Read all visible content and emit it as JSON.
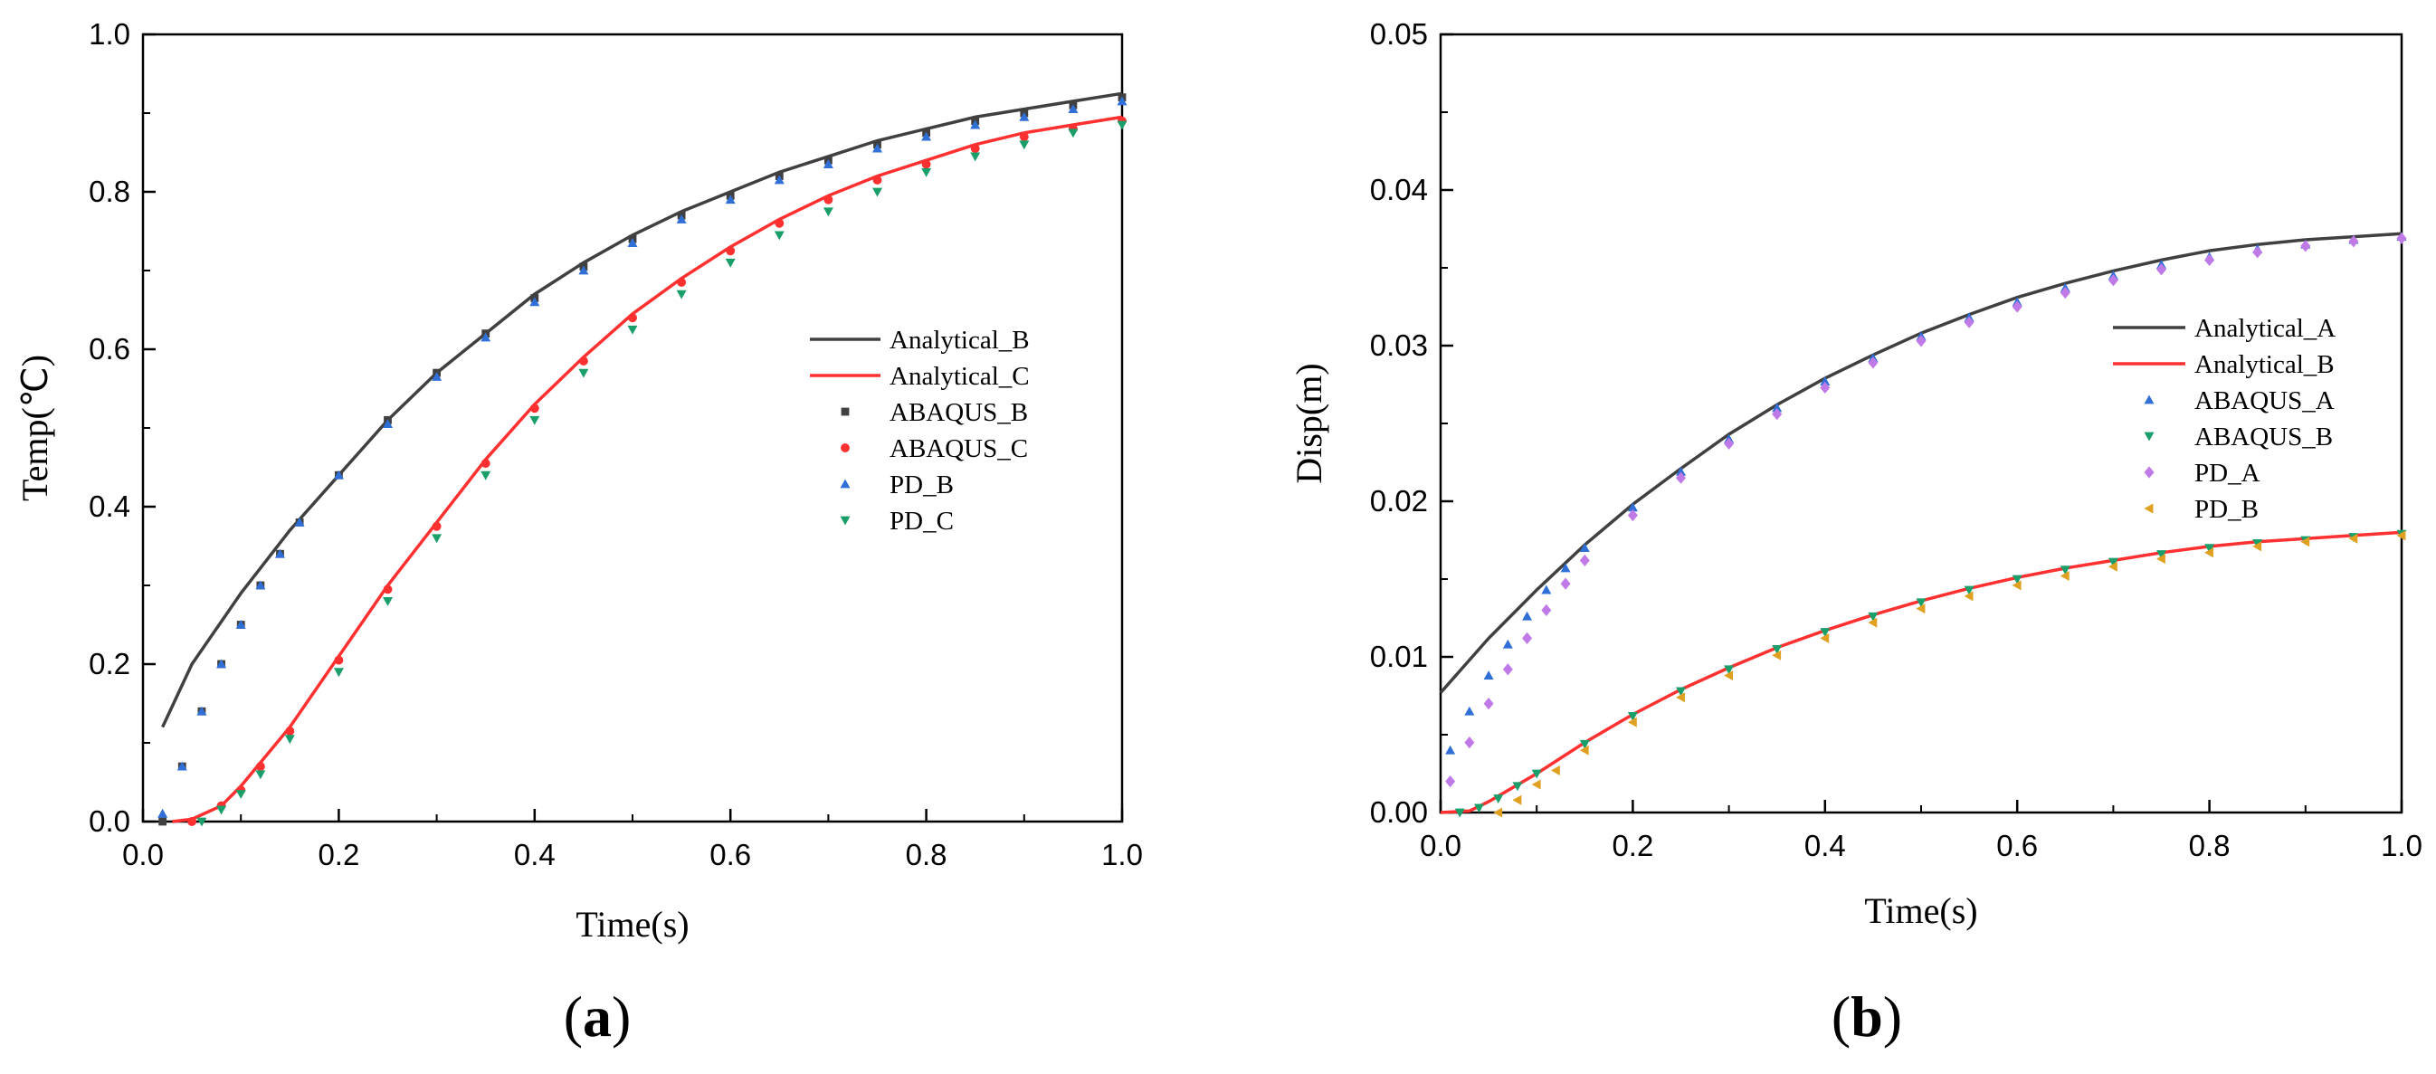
{
  "chart_data": [
    {
      "id": "a",
      "type": "line",
      "panel_label": {
        "open": "(",
        "letter": "a",
        "close": ")"
      },
      "xlabel": "Time(s)",
      "ylabel": "Temp(℃)",
      "xlim": [
        0.0,
        1.0
      ],
      "ylim": [
        0.0,
        1.0
      ],
      "xticks": [
        0.0,
        0.2,
        0.4,
        0.6,
        0.8,
        1.0
      ],
      "yticks": [
        0.0,
        0.2,
        0.4,
        0.6,
        0.8,
        1.0
      ],
      "xtick_labels": [
        "0.0",
        "0.2",
        "0.4",
        "0.6",
        "0.8",
        "1.0"
      ],
      "ytick_labels": [
        "0.0",
        "0.2",
        "0.4",
        "0.6",
        "0.8",
        "1.0"
      ],
      "legend_position": "center-right",
      "series": [
        {
          "name": "Analytical_B",
          "kind": "line",
          "color": "#404040",
          "x": [
            0.02,
            0.05,
            0.1,
            0.15,
            0.2,
            0.25,
            0.3,
            0.35,
            0.4,
            0.45,
            0.5,
            0.55,
            0.6,
            0.65,
            0.7,
            0.75,
            0.8,
            0.85,
            0.9,
            0.95,
            1.0
          ],
          "y": [
            0.12,
            0.2,
            0.29,
            0.37,
            0.44,
            0.51,
            0.57,
            0.62,
            0.67,
            0.71,
            0.745,
            0.775,
            0.8,
            0.825,
            0.845,
            0.865,
            0.88,
            0.895,
            0.905,
            0.915,
            0.925
          ]
        },
        {
          "name": "Analytical_C",
          "kind": "line",
          "color": "#ff3030",
          "x": [
            0.03,
            0.05,
            0.08,
            0.1,
            0.15,
            0.2,
            0.25,
            0.3,
            0.35,
            0.4,
            0.45,
            0.5,
            0.55,
            0.6,
            0.65,
            0.7,
            0.75,
            0.8,
            0.85,
            0.9,
            0.95,
            1.0
          ],
          "y": [
            0.0,
            0.003,
            0.02,
            0.045,
            0.12,
            0.21,
            0.3,
            0.38,
            0.46,
            0.53,
            0.59,
            0.645,
            0.69,
            0.73,
            0.765,
            0.795,
            0.82,
            0.84,
            0.86,
            0.875,
            0.885,
            0.895
          ]
        },
        {
          "name": "ABAQUS_B",
          "kind": "scatter",
          "marker": "square",
          "color": "#404040",
          "x": [
            0.02,
            0.04,
            0.06,
            0.08,
            0.1,
            0.12,
            0.14,
            0.16,
            0.2,
            0.25,
            0.3,
            0.35,
            0.4,
            0.45,
            0.5,
            0.55,
            0.6,
            0.65,
            0.7,
            0.75,
            0.8,
            0.85,
            0.9,
            0.95,
            1.0
          ],
          "y": [
            0.0,
            0.07,
            0.14,
            0.2,
            0.25,
            0.3,
            0.34,
            0.38,
            0.44,
            0.51,
            0.57,
            0.62,
            0.665,
            0.705,
            0.74,
            0.77,
            0.795,
            0.82,
            0.84,
            0.86,
            0.875,
            0.89,
            0.9,
            0.91,
            0.92
          ]
        },
        {
          "name": "ABAQUS_C",
          "kind": "scatter",
          "marker": "circle",
          "color": "#ff3030",
          "x": [
            0.05,
            0.08,
            0.1,
            0.12,
            0.15,
            0.2,
            0.25,
            0.3,
            0.35,
            0.4,
            0.45,
            0.5,
            0.55,
            0.6,
            0.65,
            0.7,
            0.75,
            0.8,
            0.85,
            0.9,
            0.95,
            1.0
          ],
          "y": [
            0.0,
            0.02,
            0.04,
            0.07,
            0.115,
            0.205,
            0.295,
            0.375,
            0.455,
            0.525,
            0.585,
            0.64,
            0.685,
            0.725,
            0.76,
            0.79,
            0.815,
            0.835,
            0.855,
            0.87,
            0.88,
            0.89
          ]
        },
        {
          "name": "PD_B",
          "kind": "scatter",
          "marker": "triangle-up",
          "color": "#2f6fd6",
          "x": [
            0.02,
            0.04,
            0.06,
            0.08,
            0.1,
            0.12,
            0.14,
            0.16,
            0.2,
            0.25,
            0.3,
            0.35,
            0.4,
            0.45,
            0.5,
            0.55,
            0.6,
            0.65,
            0.7,
            0.75,
            0.8,
            0.85,
            0.9,
            0.95,
            1.0
          ],
          "y": [
            0.01,
            0.07,
            0.14,
            0.2,
            0.25,
            0.3,
            0.34,
            0.38,
            0.44,
            0.505,
            0.565,
            0.615,
            0.66,
            0.7,
            0.735,
            0.765,
            0.79,
            0.815,
            0.835,
            0.855,
            0.87,
            0.885,
            0.895,
            0.905,
            0.915
          ]
        },
        {
          "name": "PD_C",
          "kind": "scatter",
          "marker": "triangle-down",
          "color": "#1a9e6a",
          "x": [
            0.06,
            0.08,
            0.1,
            0.12,
            0.15,
            0.2,
            0.25,
            0.3,
            0.35,
            0.4,
            0.45,
            0.5,
            0.55,
            0.6,
            0.65,
            0.7,
            0.75,
            0.8,
            0.85,
            0.9,
            0.95,
            1.0
          ],
          "y": [
            0.0,
            0.015,
            0.035,
            0.06,
            0.105,
            0.19,
            0.28,
            0.36,
            0.44,
            0.51,
            0.57,
            0.625,
            0.67,
            0.71,
            0.745,
            0.775,
            0.8,
            0.825,
            0.845,
            0.86,
            0.875,
            0.885
          ]
        }
      ]
    },
    {
      "id": "b",
      "type": "line",
      "panel_label": {
        "open": "(",
        "letter": "b",
        "close": ")"
      },
      "xlabel": "Time(s)",
      "ylabel": "Disp(m)",
      "xlim": [
        0.0,
        1.0
      ],
      "ylim": [
        0.0,
        0.05
      ],
      "xticks": [
        0.0,
        0.2,
        0.4,
        0.6,
        0.8,
        1.0
      ],
      "yticks": [
        0.0,
        0.01,
        0.02,
        0.03,
        0.04,
        0.05
      ],
      "xtick_labels": [
        "0.0",
        "0.2",
        "0.4",
        "0.6",
        "0.8",
        "1.0"
      ],
      "ytick_labels": [
        "0.00",
        "0.01",
        "0.02",
        "0.03",
        "0.04",
        "0.05"
      ],
      "legend_position": "center-right",
      "series": [
        {
          "name": "Analytical_A",
          "kind": "line",
          "color": "#404040",
          "x": [
            0.0,
            0.05,
            0.1,
            0.15,
            0.2,
            0.25,
            0.3,
            0.35,
            0.4,
            0.45,
            0.5,
            0.55,
            0.6,
            0.65,
            0.7,
            0.75,
            0.8,
            0.85,
            0.9,
            0.95,
            1.0
          ],
          "y": [
            0.0077,
            0.0112,
            0.0143,
            0.0172,
            0.0198,
            0.0221,
            0.0243,
            0.0262,
            0.0279,
            0.0294,
            0.0308,
            0.032,
            0.0331,
            0.034,
            0.0348,
            0.0355,
            0.0361,
            0.0365,
            0.0368,
            0.037,
            0.0372
          ]
        },
        {
          "name": "Analytical_B",
          "kind": "line",
          "color": "#ff3030",
          "x": [
            0.0,
            0.03,
            0.05,
            0.1,
            0.15,
            0.2,
            0.25,
            0.3,
            0.35,
            0.4,
            0.45,
            0.5,
            0.55,
            0.6,
            0.65,
            0.7,
            0.75,
            0.8,
            0.85,
            0.9,
            0.95,
            1.0
          ],
          "y": [
            0.0,
            0.0001,
            0.0007,
            0.0025,
            0.0045,
            0.0063,
            0.0079,
            0.0093,
            0.0106,
            0.0117,
            0.0127,
            0.0136,
            0.0144,
            0.0151,
            0.0157,
            0.0162,
            0.0167,
            0.0171,
            0.0174,
            0.0176,
            0.0178,
            0.018
          ]
        },
        {
          "name": "ABAQUS_A",
          "kind": "scatter",
          "marker": "triangle-up",
          "color": "#2f6fd6",
          "x": [
            0.01,
            0.03,
            0.05,
            0.07,
            0.09,
            0.11,
            0.13,
            0.15,
            0.2,
            0.25,
            0.3,
            0.35,
            0.4,
            0.45,
            0.5,
            0.55,
            0.6,
            0.65,
            0.7,
            0.75,
            0.8,
            0.85,
            0.9,
            0.95,
            1.0
          ],
          "y": [
            0.004,
            0.0065,
            0.0088,
            0.0108,
            0.0126,
            0.0143,
            0.0157,
            0.017,
            0.0196,
            0.0219,
            0.024,
            0.026,
            0.0277,
            0.0292,
            0.0306,
            0.0318,
            0.0328,
            0.0337,
            0.0345,
            0.0352,
            0.0357,
            0.0362,
            0.0365,
            0.0368,
            0.037
          ]
        },
        {
          "name": "ABAQUS_B",
          "kind": "scatter",
          "marker": "triangle-down",
          "color": "#1a9e6a",
          "x": [
            0.02,
            0.04,
            0.06,
            0.08,
            0.1,
            0.15,
            0.2,
            0.25,
            0.3,
            0.35,
            0.4,
            0.45,
            0.5,
            0.55,
            0.6,
            0.65,
            0.7,
            0.75,
            0.8,
            0.85,
            0.9,
            0.95,
            1.0
          ],
          "y": [
            0.0,
            0.0003,
            0.0009,
            0.0017,
            0.0025,
            0.0044,
            0.0062,
            0.0078,
            0.0092,
            0.0105,
            0.0116,
            0.0126,
            0.0135,
            0.0143,
            0.015,
            0.0156,
            0.0161,
            0.0166,
            0.017,
            0.0173,
            0.0175,
            0.0177,
            0.0179
          ]
        },
        {
          "name": "PD_A",
          "kind": "scatter",
          "marker": "diamond",
          "color": "#c07ae8",
          "x": [
            0.01,
            0.03,
            0.05,
            0.07,
            0.09,
            0.11,
            0.13,
            0.15,
            0.2,
            0.25,
            0.3,
            0.35,
            0.4,
            0.45,
            0.5,
            0.55,
            0.6,
            0.65,
            0.7,
            0.75,
            0.8,
            0.85,
            0.9,
            0.95,
            1.0
          ],
          "y": [
            0.002,
            0.0045,
            0.007,
            0.0092,
            0.0112,
            0.013,
            0.0147,
            0.0162,
            0.0191,
            0.0215,
            0.0237,
            0.0256,
            0.0273,
            0.0289,
            0.0303,
            0.0315,
            0.0325,
            0.0334,
            0.0342,
            0.0349,
            0.0355,
            0.036,
            0.0364,
            0.0367,
            0.0369
          ]
        },
        {
          "name": "PD_B",
          "kind": "scatter",
          "marker": "triangle-left",
          "color": "#e0a020",
          "x": [
            0.06,
            0.08,
            0.1,
            0.12,
            0.15,
            0.2,
            0.25,
            0.3,
            0.35,
            0.4,
            0.45,
            0.5,
            0.55,
            0.6,
            0.65,
            0.7,
            0.75,
            0.8,
            0.85,
            0.9,
            0.95,
            1.0
          ],
          "y": [
            0.0,
            0.0008,
            0.0018,
            0.0027,
            0.004,
            0.0058,
            0.0074,
            0.0088,
            0.0101,
            0.0112,
            0.0122,
            0.0131,
            0.0139,
            0.0146,
            0.0152,
            0.0158,
            0.0163,
            0.0167,
            0.0171,
            0.0174,
            0.0176,
            0.0178
          ]
        }
      ]
    }
  ]
}
